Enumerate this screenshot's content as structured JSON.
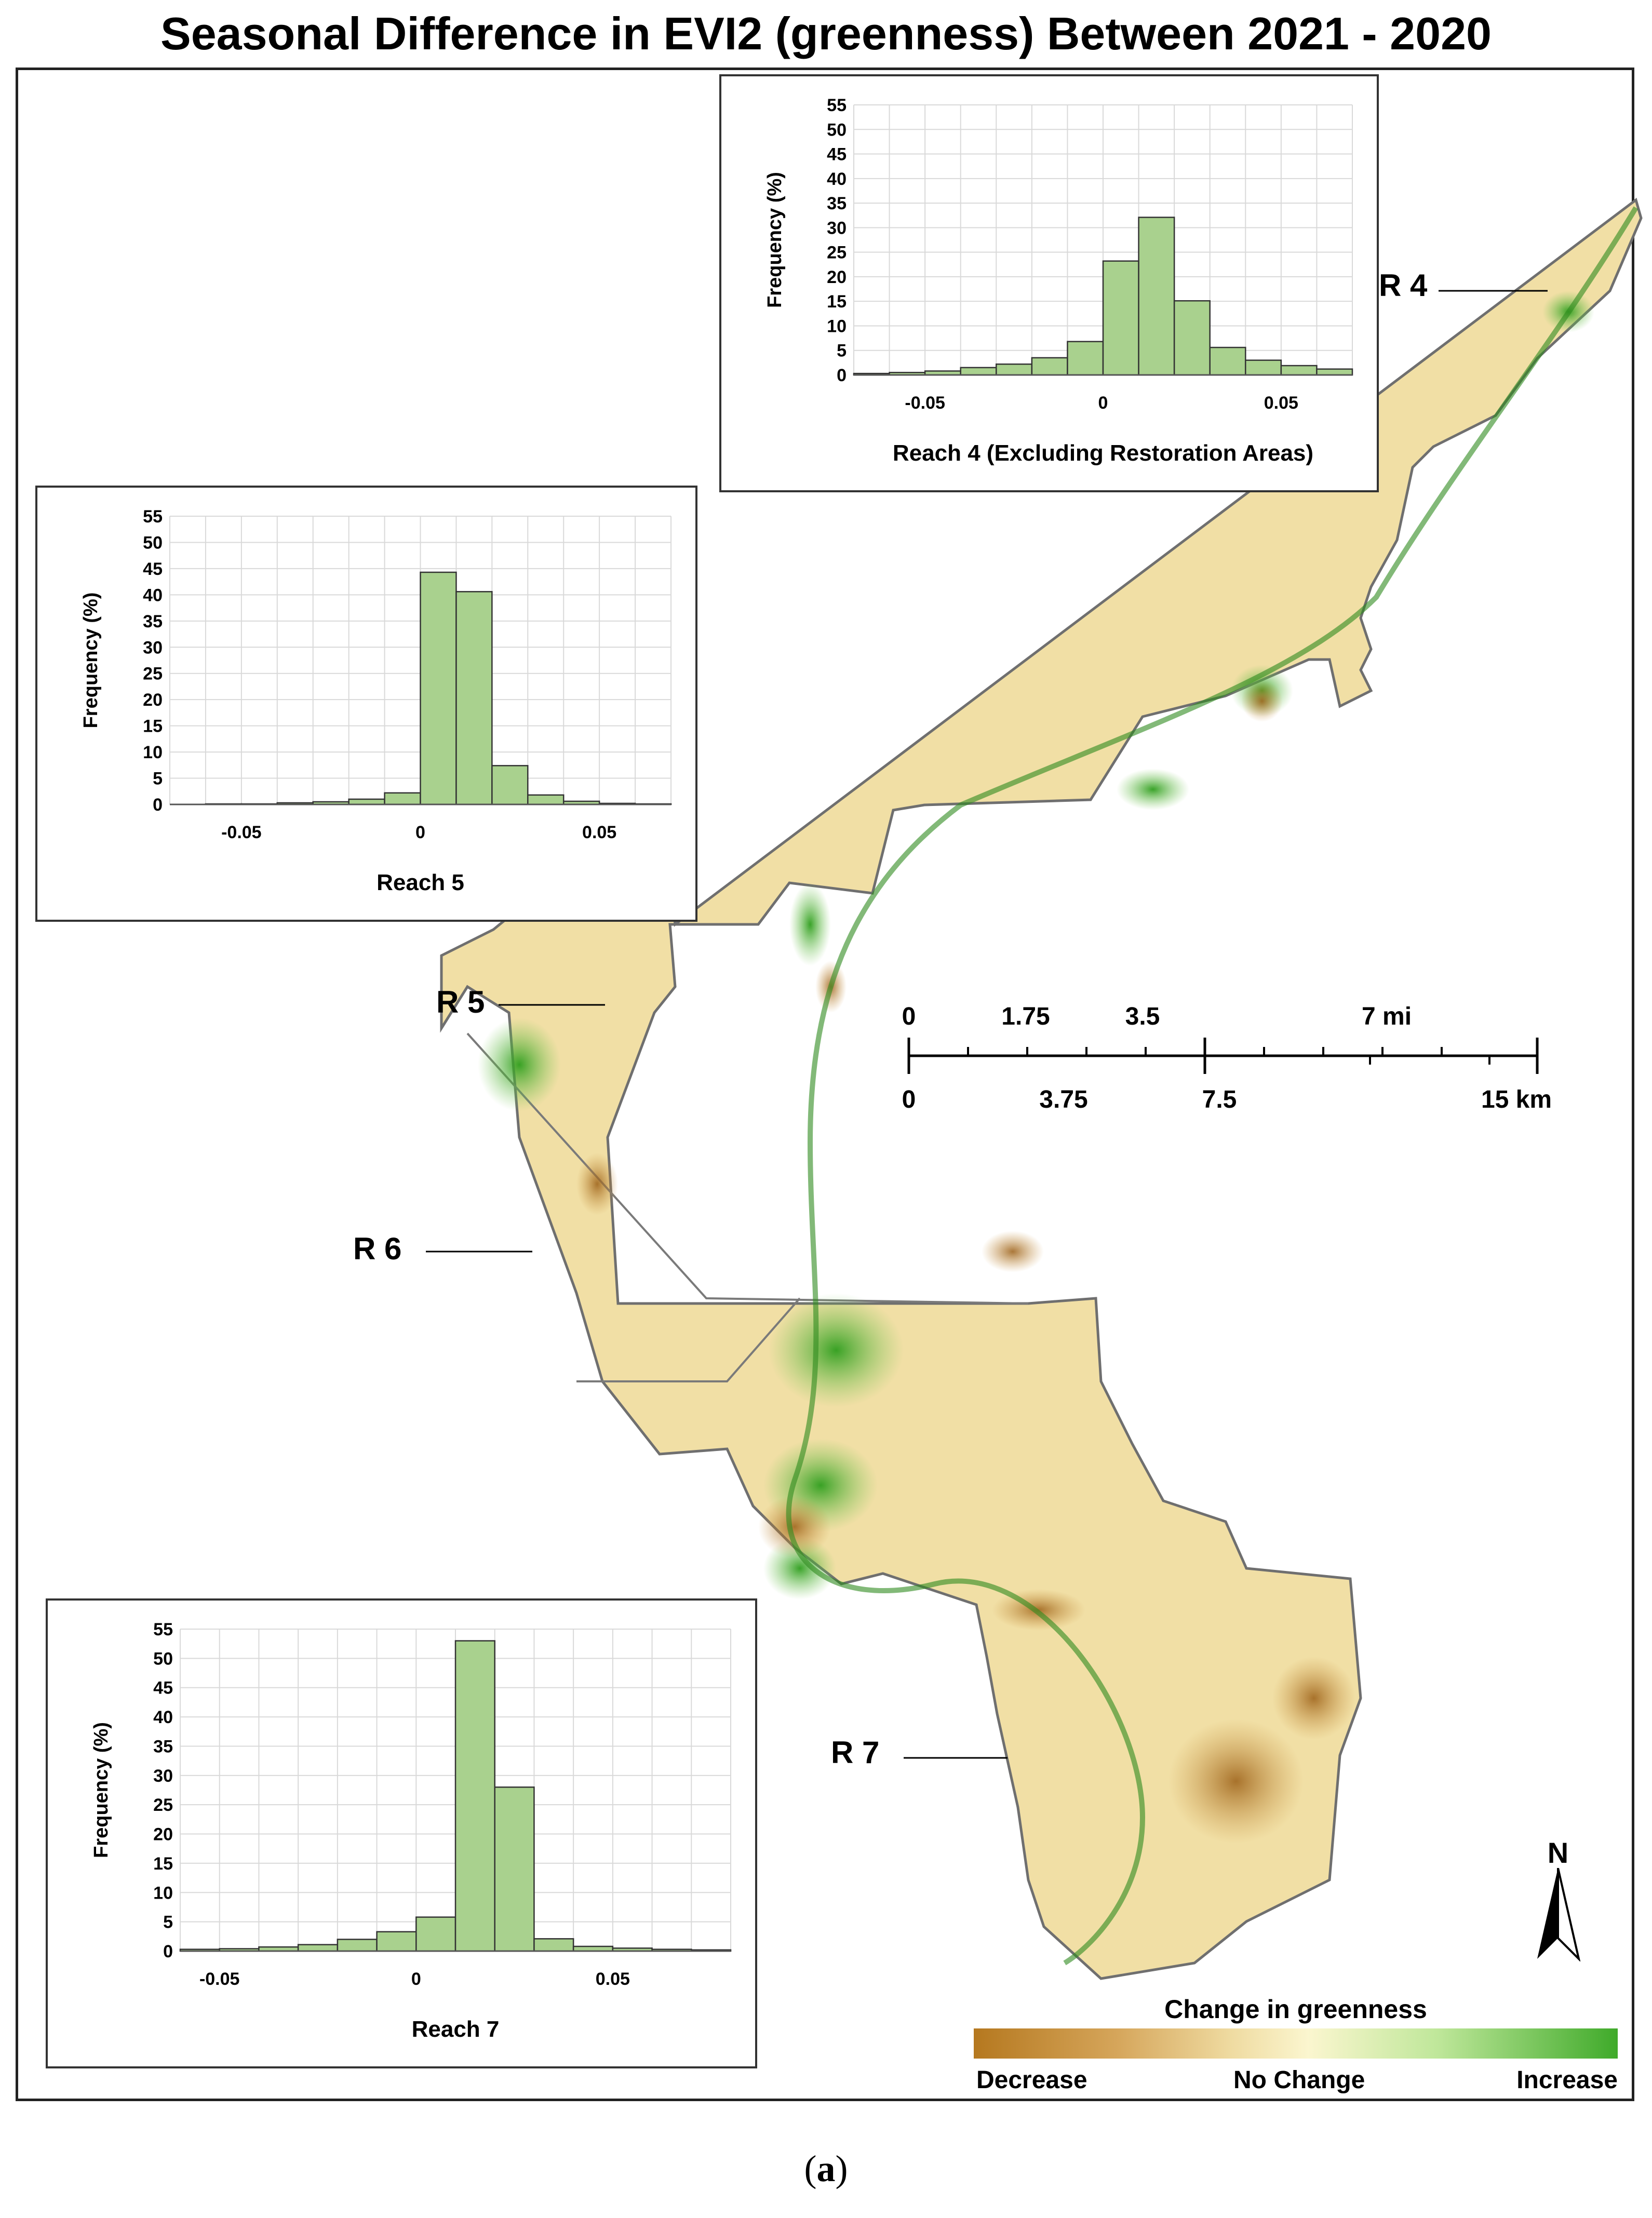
{
  "title": "Seasonal Difference in EVI2 (greenness) Between 2021 - 2020",
  "caption": {
    "open": "(",
    "letter": "a",
    "close": ")"
  },
  "reach_labels": {
    "r4": "R 4",
    "r5": "R 5",
    "r6": "R 6",
    "r7": "R 7"
  },
  "scale_bar": {
    "miles": [
      "0",
      "1.75",
      "3.5",
      "7 mi"
    ],
    "km": [
      "0",
      "3.75",
      "7.5",
      "15 km"
    ]
  },
  "north_arrow": {
    "label": "N",
    "icon": "north-arrow-icon"
  },
  "legend": {
    "title": "Change in greenness",
    "low": "Decrease",
    "mid": "No Change",
    "high": "Increase",
    "colors": {
      "decrease": "#b5781f",
      "no_change": "#fbf6cf",
      "increase": "#3faa2a"
    }
  },
  "colors": {
    "bar_fill": "#a9d18e",
    "bar_stroke": "#333333",
    "map_base": "#f1dfa5",
    "map_edge": "#777777"
  },
  "chart_data": [
    {
      "type": "bar",
      "id": "reach4",
      "xlabel": "Reach 4 (Excluding Restoration Areas)",
      "ylabel": "Frequency (%)",
      "ylim": [
        0,
        55
      ],
      "yticks": [
        0,
        5,
        10,
        15,
        20,
        25,
        30,
        35,
        40,
        45,
        50,
        55
      ],
      "xlim": [
        -0.07,
        0.07
      ],
      "xtick_values": [
        -0.05,
        0,
        0.05
      ],
      "xtick_labels": [
        "-0.05",
        "0",
        "0.05"
      ],
      "bin_width": 0.01,
      "bin_starts": [
        -0.07,
        -0.06,
        -0.05,
        -0.04,
        -0.03,
        -0.02,
        -0.01,
        0.0,
        0.01,
        0.02,
        0.03,
        0.04,
        0.05,
        0.06
      ],
      "values": [
        0.3,
        0.5,
        0.8,
        1.5,
        2.2,
        3.5,
        6.8,
        23.2,
        32.1,
        15.1,
        5.6,
        3.0,
        1.9,
        1.2
      ]
    },
    {
      "type": "bar",
      "id": "reach5",
      "xlabel": "Reach 5",
      "ylabel": "Frequency (%)",
      "ylim": [
        0,
        55
      ],
      "yticks": [
        0,
        5,
        10,
        15,
        20,
        25,
        30,
        35,
        40,
        45,
        50,
        55
      ],
      "xlim": [
        -0.07,
        0.07
      ],
      "xtick_values": [
        -0.05,
        0,
        0.05
      ],
      "xtick_labels": [
        "-0.05",
        "0",
        "0.05"
      ],
      "bin_width": 0.01,
      "bin_starts": [
        -0.07,
        -0.06,
        -0.05,
        -0.04,
        -0.03,
        -0.02,
        -0.01,
        0.0,
        0.01,
        0.02,
        0.03,
        0.04,
        0.05,
        0.06
      ],
      "values": [
        0.0,
        0.1,
        0.1,
        0.3,
        0.5,
        1.0,
        2.2,
        44.3,
        40.6,
        7.4,
        1.8,
        0.6,
        0.2,
        0.1
      ]
    },
    {
      "type": "bar",
      "id": "reach7",
      "xlabel": "Reach 7",
      "ylabel": "Frequency (%)",
      "ylim": [
        0,
        55
      ],
      "yticks": [
        0,
        5,
        10,
        15,
        20,
        25,
        30,
        35,
        40,
        45,
        50,
        55
      ],
      "xlim": [
        -0.06,
        0.08
      ],
      "xtick_values": [
        -0.05,
        0,
        0.05
      ],
      "xtick_labels": [
        "-0.05",
        "0",
        "0.05"
      ],
      "bin_width": 0.01,
      "bin_starts": [
        -0.06,
        -0.05,
        -0.04,
        -0.03,
        -0.02,
        -0.01,
        0.0,
        0.01,
        0.02,
        0.03,
        0.04,
        0.05,
        0.06,
        0.07
      ],
      "values": [
        0.3,
        0.4,
        0.7,
        1.1,
        2.0,
        3.3,
        5.8,
        53.0,
        28.0,
        2.1,
        0.8,
        0.5,
        0.3,
        0.2
      ]
    }
  ]
}
